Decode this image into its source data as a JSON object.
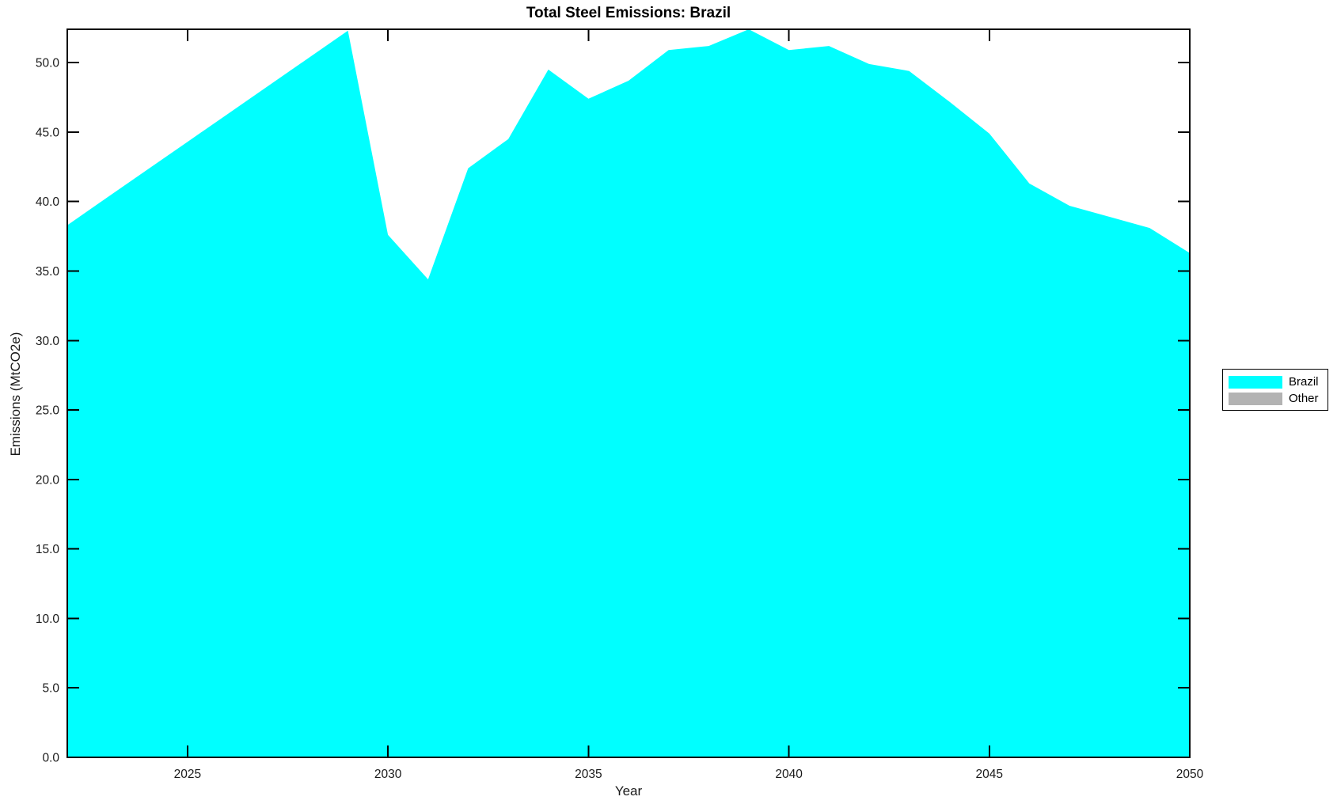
{
  "chart_data": {
    "type": "area",
    "title": "Total Steel Emissions: Brazil",
    "xlabel": "Year",
    "ylabel": "Emissions (MtCO2e)",
    "x": [
      2022,
      2023,
      2024,
      2025,
      2026,
      2027,
      2028,
      2029,
      2030,
      2031,
      2032,
      2033,
      2034,
      2035,
      2036,
      2037,
      2038,
      2039,
      2040,
      2041,
      2042,
      2043,
      2044,
      2045,
      2046,
      2047,
      2048,
      2049,
      2050
    ],
    "series": [
      {
        "name": "Brazil",
        "color": "#00FFFF",
        "values": [
          38.3,
          40.3,
          42.3,
          44.3,
          46.3,
          48.3,
          50.3,
          52.3,
          37.6,
          34.4,
          42.4,
          44.5,
          49.5,
          47.4,
          48.7,
          50.9,
          51.2,
          52.4,
          50.9,
          51.2,
          49.9,
          49.4,
          47.2,
          44.9,
          41.3,
          39.7,
          38.9,
          38.1,
          36.3
        ]
      },
      {
        "name": "Other",
        "color": "#B3B3B3",
        "values": []
      }
    ],
    "xlim": [
      2022,
      2050
    ],
    "ylim": [
      0,
      52.4
    ],
    "xticks": [
      2025,
      2030,
      2035,
      2040,
      2045,
      2050
    ],
    "yticks": [
      "0.0",
      "5.0",
      "10.0",
      "15.0",
      "20.0",
      "25.0",
      "30.0",
      "35.0",
      "40.0",
      "45.0",
      "50.0"
    ],
    "grid": false,
    "legend_position": "right-outside",
    "legend": [
      {
        "label": "Brazil",
        "color": "#00FFFF"
      },
      {
        "label": "Other",
        "color": "#B3B3B3"
      }
    ],
    "axis_color": "#000000"
  }
}
